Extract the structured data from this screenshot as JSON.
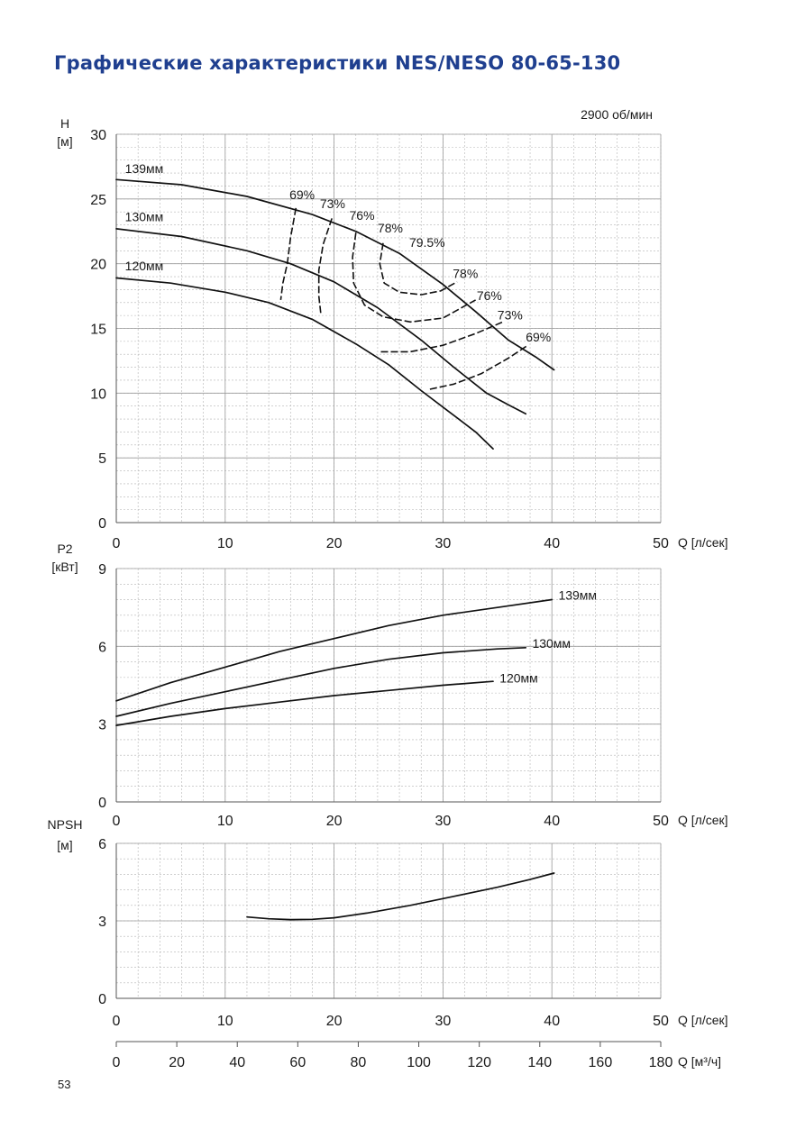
{
  "page": {
    "title": "Графические характеристики NES/NESO 80-65-130",
    "title_color": "#1f3f8f",
    "page_number": "53"
  },
  "chart_data": [
    {
      "id": "head",
      "type": "line",
      "speed_label": "2900 об/мин",
      "ylabel": "H",
      "yunit": "[м]",
      "xlabel": "Q [л/сек]",
      "xlim": [
        0,
        50
      ],
      "ylim": [
        0,
        30
      ],
      "xticks": [
        0,
        10,
        20,
        30,
        40,
        50
      ],
      "yticks": [
        0,
        5,
        10,
        15,
        20,
        25,
        30
      ],
      "grid": true,
      "series": [
        {
          "name": "139мм",
          "x": [
            0,
            6,
            12,
            18,
            22,
            26,
            30,
            33,
            36,
            38.5,
            40.2
          ],
          "y": [
            26.5,
            26.1,
            25.2,
            23.8,
            22.5,
            20.8,
            18.4,
            16.3,
            14.1,
            12.8,
            11.8
          ]
        },
        {
          "name": "130мм",
          "x": [
            0,
            6,
            12,
            16,
            20,
            24,
            28,
            31,
            34,
            36,
            37.6
          ],
          "y": [
            22.7,
            22.1,
            21.0,
            20.0,
            18.6,
            16.6,
            14.1,
            12.0,
            10.0,
            9.1,
            8.4
          ]
        },
        {
          "name": "120мм",
          "x": [
            0,
            5,
            10,
            14,
            18,
            22,
            25,
            28,
            30.5,
            33,
            34.6
          ],
          "y": [
            18.9,
            18.5,
            17.8,
            17.0,
            15.7,
            13.8,
            12.2,
            10.2,
            8.6,
            7.0,
            5.7
          ]
        }
      ],
      "efficiency": [
        {
          "label": "69%",
          "x": [
            16.5,
            16,
            15.7,
            15.3,
            15.1
          ],
          "y": [
            24.3,
            22,
            20,
            18.5,
            17.2
          ]
        },
        {
          "label": "73%",
          "x": [
            19.8,
            19.0,
            18.6,
            18.6,
            18.8
          ],
          "y": [
            23.5,
            21.5,
            19.5,
            17.5,
            16.0
          ]
        },
        {
          "label": "76%",
          "x": [
            22.0,
            21.7,
            21.8,
            22.8,
            24.5,
            27.0,
            30.0,
            33.0
          ],
          "y": [
            22.4,
            20.5,
            18.5,
            16.8,
            15.9,
            15.5,
            15.8,
            17.2
          ]
        },
        {
          "label": "78%",
          "x": [
            24.5,
            24.2,
            24.6,
            26.0,
            28.0,
            29.8,
            31.3
          ],
          "y": [
            21.6,
            20.0,
            18.5,
            17.8,
            17.6,
            17.9,
            18.6
          ]
        },
        {
          "label": "73%",
          "x": [
            24.3,
            27.0,
            30.0,
            33.0,
            35.5
          ],
          "y": [
            13.2,
            13.2,
            13.7,
            14.6,
            15.5
          ]
        },
        {
          "label": "69%",
          "x": [
            28.8,
            31.0,
            33.5,
            36.0,
            37.8
          ],
          "y": [
            10.3,
            10.7,
            11.5,
            12.7,
            13.7
          ]
        }
      ],
      "labels": [
        {
          "text": "139мм",
          "x": 0.8,
          "y": 27.0
        },
        {
          "text": "130мм",
          "x": 0.8,
          "y": 23.3
        },
        {
          "text": "120мм",
          "x": 0.8,
          "y": 19.5
        },
        {
          "text": "69%",
          "x": 15.9,
          "y": 25.0
        },
        {
          "text": "73%",
          "x": 18.7,
          "y": 24.3
        },
        {
          "text": "76%",
          "x": 21.4,
          "y": 23.4
        },
        {
          "text": "78%",
          "x": 24.0,
          "y": 22.4
        },
        {
          "text": "79.5%",
          "x": 26.9,
          "y": 21.3
        },
        {
          "text": "78%",
          "x": 30.9,
          "y": 18.9
        },
        {
          "text": "76%",
          "x": 33.1,
          "y": 17.2
        },
        {
          "text": "73%",
          "x": 35.0,
          "y": 15.7
        },
        {
          "text": "69%",
          "x": 37.6,
          "y": 14.0
        }
      ]
    },
    {
      "id": "power",
      "type": "line",
      "ylabel": "P2",
      "yunit": "[кВт]",
      "xlabel": "Q [л/сек]",
      "xlim": [
        0,
        50
      ],
      "ylim": [
        0,
        9
      ],
      "xticks": [
        0,
        10,
        20,
        30,
        40,
        50
      ],
      "yticks": [
        0,
        3,
        6,
        9
      ],
      "grid": true,
      "series": [
        {
          "name": "139мм",
          "x": [
            0,
            5,
            10,
            15,
            20,
            25,
            30,
            35,
            40
          ],
          "y": [
            3.9,
            4.6,
            5.2,
            5.8,
            6.3,
            6.8,
            7.2,
            7.5,
            7.8
          ]
        },
        {
          "name": "130мм",
          "x": [
            0,
            5,
            10,
            15,
            20,
            25,
            30,
            35,
            37.6
          ],
          "y": [
            3.3,
            3.8,
            4.25,
            4.7,
            5.15,
            5.5,
            5.75,
            5.9,
            5.95
          ]
        },
        {
          "name": "120мм",
          "x": [
            0,
            5,
            10,
            15,
            20,
            25,
            30,
            34.6
          ],
          "y": [
            2.95,
            3.3,
            3.6,
            3.85,
            4.1,
            4.3,
            4.5,
            4.65
          ]
        }
      ],
      "labels": [
        {
          "text": "139мм",
          "x": 40.6,
          "y": 7.8
        },
        {
          "text": "130мм",
          "x": 38.2,
          "y": 5.95
        },
        {
          "text": "120мм",
          "x": 35.2,
          "y": 4.6
        }
      ]
    },
    {
      "id": "npsh",
      "type": "line",
      "ylabel": "NPSH",
      "yunit": "[м]",
      "xlabel": "Q [л/сек]",
      "xlim": [
        0,
        50
      ],
      "ylim": [
        0,
        6
      ],
      "xticks": [
        0,
        10,
        20,
        30,
        40,
        50
      ],
      "yticks": [
        0,
        3,
        6
      ],
      "grid": true,
      "series": [
        {
          "name": "",
          "x": [
            12,
            14,
            16,
            18,
            20,
            23,
            27,
            31,
            35,
            38,
            40.2
          ],
          "y": [
            3.15,
            3.08,
            3.05,
            3.06,
            3.12,
            3.3,
            3.6,
            3.95,
            4.3,
            4.6,
            4.85
          ]
        }
      ],
      "labels": []
    }
  ],
  "flow_axis_m3h": {
    "xlabel": "Q [м³/ч]",
    "xlim": [
      0,
      180
    ],
    "xticks": [
      0,
      20,
      40,
      60,
      80,
      100,
      120,
      140,
      160,
      180
    ]
  }
}
